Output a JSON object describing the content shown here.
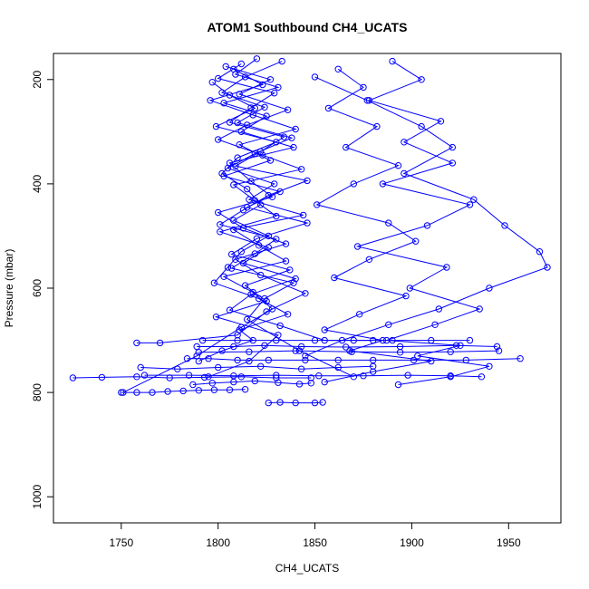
{
  "colors": {
    "series": "#0000ff",
    "axis": "#000000",
    "background": "#ffffff"
  },
  "chart_data": {
    "type": "line",
    "title": "ATOM1 Southbound CH4_UCATS",
    "xlabel": "CH4_UCATS",
    "ylabel": "Pressure (mbar)",
    "xlim": [
      1715,
      1977
    ],
    "ylim": [
      1050,
      150
    ],
    "y_reversed": true,
    "grid": false,
    "markers": "open-circle",
    "x_ticks": [
      1750,
      1800,
      1850,
      1900,
      1950
    ],
    "x_tick_labels": [
      "1750",
      "1800",
      "1850",
      "1900",
      "1950"
    ],
    "y_ticks": [
      200,
      400,
      600,
      800,
      1000
    ],
    "y_tick_labels": [
      "200",
      "400",
      "600",
      "800",
      "1000"
    ],
    "series": [
      {
        "profiles": [
          {
            "x": [
              1797,
              1806,
              1819,
              1799,
              1830,
              1810,
              1802,
              1815,
              1822,
              1808,
              1826,
              1812,
              1805,
              1798,
              1821,
              1836,
              1811,
              1818,
              1802,
              1790
            ],
            "y": [
              205,
              230,
              255,
              290,
              320,
              350,
              380,
              410,
              440,
              470,
              500,
              530,
              560,
              590,
              620,
              650,
              680,
              700,
              720,
              740
            ]
          },
          {
            "x": [
              1820,
              1809,
              1831,
              1803,
              1825,
              1812,
              1839,
              1806,
              1817,
              1828,
              1800,
              1813,
              1835,
              1809,
              1822,
              1845,
              1825,
              1810,
              1770,
              1758
            ],
            "y": [
              160,
              190,
              215,
              245,
              270,
              300,
              330,
              360,
              395,
              425,
              455,
              485,
              515,
              545,
              575,
              610,
              645,
              690,
              705,
              705
            ]
          },
          {
            "x": [
              1804,
              1827,
              1811,
              1836,
              1815,
              1800,
              1823,
              1843,
              1808,
              1819,
              1830,
              1801,
              1826,
              1813,
              1840,
              1817,
              1806,
              1832,
              1855,
              1880
            ],
            "y": [
              175,
              200,
              228,
              258,
              287,
              315,
              345,
              372,
              402,
              432,
              462,
              492,
              522,
              552,
              582,
              612,
              642,
              672,
              700,
              700
            ]
          },
          {
            "x": [
              1833,
              1814,
              1802,
              1824,
              1810,
              1838,
              1819,
              1805,
              1829,
              1816,
              1844,
              1808,
              1821,
              1835,
              1803,
              1818,
              1828,
              1812,
              1789,
              1751
            ],
            "y": [
              165,
              195,
              225,
              253,
              283,
              312,
              342,
              370,
              400,
              430,
              460,
              488,
              518,
              548,
              578,
              608,
              640,
              675,
              730,
              800
            ]
          },
          {
            "x": [
              1812,
              1800,
              1829,
              1817,
              1806,
              1834,
              1822,
              1809,
              1846,
              1826,
              1813,
              1801,
              1830,
              1819,
              1807,
              1839,
              1824,
              1815,
              1842,
              1870
            ],
            "y": [
              170,
              198,
              226,
              254,
              282,
              310,
              338,
              366,
              394,
              422,
              450,
              478,
              506,
              534,
              562,
              590,
              620,
              660,
              720,
              770
            ]
          },
          {
            "x": [
              1808,
              1823,
              1796,
              1818,
              1840,
              1811,
              1827,
              1803,
              1832,
              1815,
              1846,
              1820,
              1807,
              1837,
              1814,
              1825,
              1799,
              1831,
              1816,
              1795
            ],
            "y": [
              180,
              210,
              240,
              268,
              295,
              325,
              355,
              385,
              415,
              445,
              475,
              505,
              535,
              565,
              595,
              625,
              655,
              690,
              740,
              770
            ]
          },
          {
            "x": [
              1862,
              1875,
              1857,
              1882,
              1866,
              1893,
              1870,
              1851,
              1888,
              1902,
              1878,
              1860,
              1897,
              1873,
              1855,
              1885,
              1868,
              1910,
              1880,
              1855
            ],
            "y": [
              180,
              215,
              255,
              290,
              330,
              365,
              400,
              440,
              475,
              510,
              545,
              580,
              615,
              650,
              680,
              700,
              720,
              740,
              760,
              780
            ]
          },
          {
            "x": [
              1890,
              1905,
              1878,
              1915,
              1896,
              1921,
              1885,
              1930,
              1908,
              1872,
              1918,
              1899,
              1935,
              1912,
              1887,
              1925,
              1903,
              1940,
              1920,
              1893
            ],
            "y": [
              165,
              200,
              240,
              280,
              320,
              360,
              400,
              440,
              480,
              520,
              560,
              600,
              640,
              670,
              700,
              710,
              730,
              750,
              770,
              785
            ]
          },
          {
            "x": [
              1850,
              1877,
              1905,
              1921,
              1896,
              1932,
              1948,
              1966,
              1970,
              1940,
              1914,
              1888,
              1864,
              1845
            ],
            "y": [
              195,
              240,
              290,
              330,
              380,
              430,
              480,
              530,
              560,
              600,
              640,
              670,
              700,
              730
            ]
          },
          {
            "x": [
              1784,
              1795,
              1810,
              1826,
              1845,
              1862,
              1880,
              1901,
              1928,
              1956
            ],
            "y": [
              735,
              735,
              738,
              738,
              738,
              738,
              738,
              738,
              738,
              735
            ]
          },
          {
            "x": [
              1762,
              1785,
              1808,
              1830,
              1852,
              1875,
              1898,
              1920,
              1936
            ],
            "y": [
              767,
              767,
              768,
              767,
              768,
              768,
              767,
              768,
              770
            ]
          },
          {
            "x": [
              1725,
              1740,
              1758,
              1775,
              1793,
              1812,
              1830,
              1848
            ],
            "y": [
              772,
              771,
              770,
              772,
              771,
              770,
              772,
              772
            ]
          },
          {
            "x": [
              1750,
              1758,
              1766,
              1774,
              1782,
              1790,
              1798,
              1806,
              1814
            ],
            "y": [
              800,
              800,
              800,
              798,
              797,
              796,
              795,
              795,
              794
            ]
          },
          {
            "x": [
              1826,
              1832,
              1840,
              1850,
              1854
            ],
            "y": [
              820,
              819,
              820,
              820,
              819
            ]
          },
          {
            "x": [
              1792,
              1810,
              1830,
              1850,
              1870,
              1890,
              1910,
              1930
            ],
            "y": [
              700,
              700,
              700,
              700,
              700,
              700,
              700,
              700
            ]
          },
          {
            "x": [
              1789,
              1808,
              1824,
              1843,
              1866,
              1894,
              1923,
              1944
            ],
            "y": [
              712,
              712,
              710,
              712,
              713,
              712,
              710,
              712
            ]
          },
          {
            "x": [
              1760,
              1779,
              1800,
              1822,
              1843,
              1862,
              1880
            ],
            "y": [
              752,
              755,
              752,
              750,
              755,
              752,
              750
            ]
          },
          {
            "x": [
              1787,
              1797,
              1808,
              1819,
              1831,
              1842,
              1848
            ],
            "y": [
              785,
              782,
              780,
              778,
              781,
              784,
              782
            ]
          },
          {
            "x": [
              1790,
              1816,
              1840,
              1869,
              1894,
              1920,
              1945
            ],
            "y": [
              723,
              722,
              720,
              722,
              723,
              722,
              720
            ]
          }
        ]
      }
    ]
  }
}
